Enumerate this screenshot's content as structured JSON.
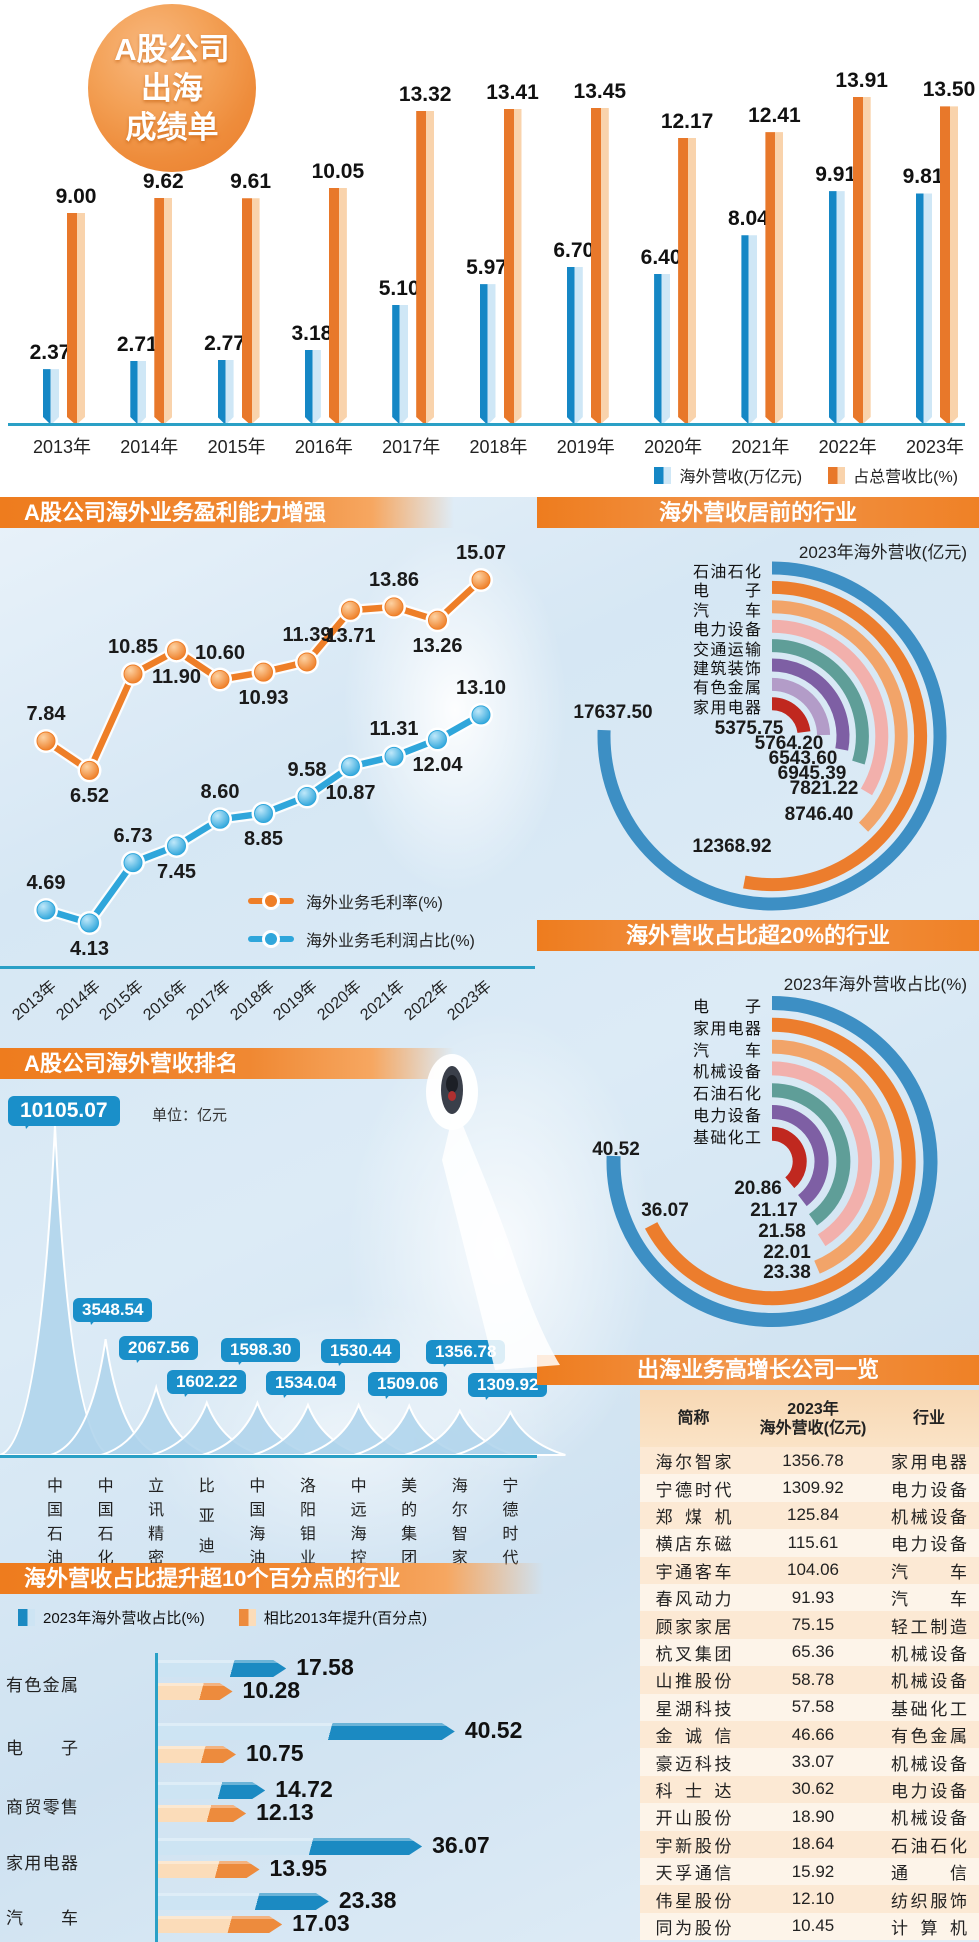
{
  "page": {
    "badge_lines": [
      "A股公司",
      "出海",
      "成绩单"
    ]
  },
  "colors": {
    "bar_blue": "#1587c5",
    "bar_blue_light": "#cfe7f6",
    "bar_orange": "#e8782a",
    "bar_orange_light": "#f9d3ac",
    "axis_teal": "#2aa0c6",
    "badge_blue": "#1a8fc9",
    "line_orange": "#ee7e27",
    "line_blue": "#2fa6db",
    "header_orange": "#ee7c1e",
    "peak_fill": "#afd4ec",
    "hbar_blue_light": "#cde4f3",
    "hbar_blue_dark": "#1b8ac2",
    "hbar_orange_light": "#fbdcb9",
    "hbar_orange_dark": "#ed8b3d"
  },
  "chart_data": [
    {
      "id": "overseas-revenue-by-year",
      "type": "bar",
      "categories": [
        "2013年",
        "2014年",
        "2015年",
        "2016年",
        "2017年",
        "2018年",
        "2019年",
        "2020年",
        "2021年",
        "2022年",
        "2023年"
      ],
      "series": [
        {
          "name": "海外营收(万亿元)",
          "color": "#1587c5",
          "color_light": "#cfe7f6",
          "values": [
            2.37,
            2.71,
            2.77,
            3.18,
            5.1,
            5.97,
            6.7,
            6.4,
            8.04,
            9.91,
            9.81
          ]
        },
        {
          "name": "占总营收比(%)",
          "color": "#e8782a",
          "color_light": "#f9d3ac",
          "values": [
            9.0,
            9.62,
            9.61,
            10.05,
            13.32,
            13.41,
            13.45,
            12.17,
            12.41,
            13.91,
            13.5
          ]
        }
      ],
      "legend_position": "bottom-right",
      "ylim": [
        0,
        14.5
      ]
    },
    {
      "id": "overseas-profitability",
      "type": "line",
      "title": "A股公司海外业务盈利能力增强",
      "categories": [
        "2013年",
        "2014年",
        "2015年",
        "2016年",
        "2017年",
        "2018年",
        "2019年",
        "2020年",
        "2021年",
        "2022年",
        "2023年"
      ],
      "series": [
        {
          "name": "海外业务毛利率(%)",
          "color": "#ee7e27",
          "values": [
            7.84,
            6.52,
            10.85,
            11.9,
            10.6,
            10.93,
            11.39,
            13.71,
            13.86,
            13.26,
            15.07
          ]
        },
        {
          "name": "海外业务毛利润占比(%)",
          "color": "#2fa6db",
          "values": [
            4.69,
            4.13,
            6.73,
            7.45,
            8.6,
            8.85,
            9.58,
            10.87,
            11.31,
            12.04,
            13.1
          ]
        }
      ],
      "legend_position": "inside-right"
    },
    {
      "id": "top-industries-by-overseas-revenue",
      "type": "radial-bar",
      "title": "海外营收居前的行业",
      "subtitle": "2023年海外营收(亿元)",
      "categories": [
        "石油石化",
        "电子",
        "汽车",
        "电力设备",
        "交通运输",
        "建筑装饰",
        "有色金属",
        "家用电器"
      ],
      "values": [
        17637.5,
        12368.92,
        8746.4,
        7821.22,
        6945.39,
        6543.6,
        5764.2,
        5375.75
      ],
      "colors": [
        "#3d8fc4",
        "#ec7d2d",
        "#f2a469",
        "#f2b0ac",
        "#5f9e98",
        "#7e5fa4",
        "#b39cc8",
        "#c0281f"
      ]
    },
    {
      "id": "industries-with-overseas-share-over-20pct",
      "type": "radial-bar",
      "title": "海外营收占比超20%的行业",
      "subtitle": "2023年海外营收占比(%)",
      "categories": [
        "电子",
        "家用电器",
        "汽车",
        "机械设备",
        "石油石化",
        "电力设备",
        "基础化工"
      ],
      "values": [
        40.52,
        36.07,
        23.38,
        22.01,
        21.58,
        21.17,
        20.86
      ],
      "colors": [
        "#3d8fc4",
        "#ec7d2d",
        "#f2a469",
        "#f2b0ac",
        "#5f9e98",
        "#7e5fa4",
        "#c0281f"
      ]
    },
    {
      "id": "overseas-revenue-ranking",
      "type": "peak",
      "title": "A股公司海外营收排名",
      "unit": "单位：亿元",
      "categories": [
        "中国石油",
        "中国石化",
        "立讯精密",
        "比亚迪",
        "中国海油",
        "洛阳钼业",
        "中远海控",
        "美的集团",
        "海尔智家",
        "宁德时代"
      ],
      "values": [
        10105.07,
        3548.54,
        2067.56,
        1602.22,
        1598.3,
        1534.04,
        1530.44,
        1509.06,
        1356.78,
        1309.92
      ]
    },
    {
      "id": "industries-share-increase-over-10pts",
      "type": "hbar",
      "title": "海外营收占比提升超10个百分点的行业",
      "categories": [
        "有色金属",
        "电子",
        "商贸零售",
        "家用电器",
        "汽车"
      ],
      "series": [
        {
          "name": "2023年海外营收占比(%)",
          "color": "#1b8ac2",
          "color_light": "#cde4f3",
          "values": [
            17.58,
            40.52,
            14.72,
            36.07,
            23.38
          ]
        },
        {
          "name": "相比2013年提升(百分点)",
          "color": "#ed8b3d",
          "color_light": "#fbdcb9",
          "values": [
            10.28,
            10.75,
            12.13,
            13.95,
            17.03
          ]
        }
      ]
    },
    {
      "id": "high-growth-overseas-companies",
      "type": "table",
      "title": "出海业务高增长公司一览",
      "columns": [
        {
          "lines": [
            "简称"
          ]
        },
        {
          "lines": [
            "2023年",
            "海外营收(亿元)"
          ]
        },
        {
          "lines": [
            "行业"
          ]
        }
      ],
      "rows": [
        {
          "name": "海尔智家",
          "value": 1356.78,
          "industry": "家用电器"
        },
        {
          "name": "宁德时代",
          "value": 1309.92,
          "industry": "电力设备"
        },
        {
          "name": "郑煤机",
          "value": 125.84,
          "industry": "机械设备"
        },
        {
          "name": "横店东磁",
          "value": 115.61,
          "industry": "电力设备"
        },
        {
          "name": "宇通客车",
          "value": 104.06,
          "industry": "汽车"
        },
        {
          "name": "春风动力",
          "value": 91.93,
          "industry": "汽车"
        },
        {
          "name": "顾家家居",
          "value": 75.15,
          "industry": "轻工制造"
        },
        {
          "name": "杭叉集团",
          "value": 65.36,
          "industry": "机械设备"
        },
        {
          "name": "山推股份",
          "value": 58.78,
          "industry": "机械设备"
        },
        {
          "name": "星湖科技",
          "value": 57.58,
          "industry": "基础化工"
        },
        {
          "name": "金诚信",
          "value": 46.66,
          "industry": "有色金属"
        },
        {
          "name": "豪迈科技",
          "value": 33.07,
          "industry": "机械设备"
        },
        {
          "name": "科士达",
          "value": 30.62,
          "industry": "电力设备"
        },
        {
          "name": "开山股份",
          "value": 18.9,
          "industry": "机械设备"
        },
        {
          "name": "宇新股份",
          "value": 18.64,
          "industry": "石油石化"
        },
        {
          "name": "天孚通信",
          "value": 15.92,
          "industry": "通信"
        },
        {
          "name": "伟星股份",
          "value": 12.1,
          "industry": "纺织服饰"
        },
        {
          "name": "同为股份",
          "value": 10.45,
          "industry": "计算机"
        }
      ]
    }
  ]
}
